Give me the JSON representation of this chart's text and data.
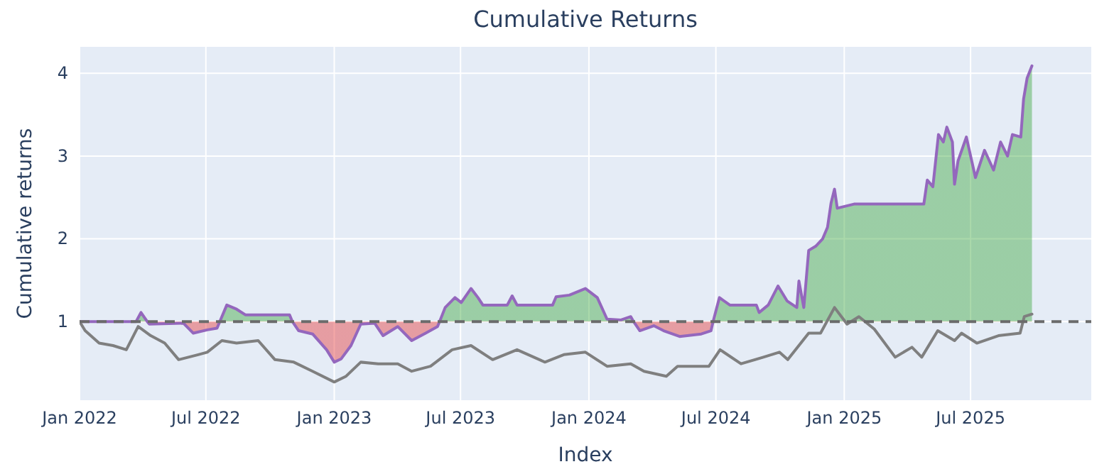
{
  "chart_data": {
    "type": "line",
    "title": "Cumulative Returns",
    "xlabel": "Index",
    "ylabel": "Cumulative returns",
    "xlim": [
      "2022-01-01",
      "2025-12-21"
    ],
    "xticks": [
      {
        "value": "2022-01-01",
        "label": "Jan 2022"
      },
      {
        "value": "2022-07-01",
        "label": "Jul 2022"
      },
      {
        "value": "2023-01-01",
        "label": "Jan 2023"
      },
      {
        "value": "2023-07-01",
        "label": "Jul 2023"
      },
      {
        "value": "2024-01-01",
        "label": "Jan 2024"
      },
      {
        "value": "2024-07-01",
        "label": "Jul 2024"
      },
      {
        "value": "2025-01-01",
        "label": "Jan 2025"
      },
      {
        "value": "2025-07-01",
        "label": "Jul 2025"
      }
    ],
    "ylim": [
      0.05,
      4.32
    ],
    "yticks": [
      1,
      2,
      3,
      4
    ],
    "grid": true,
    "ref_lines": [
      {
        "axis": "y",
        "value": 1,
        "color": "#6b6b6b",
        "line_style": "dashed"
      }
    ],
    "series": [
      {
        "type": "area",
        "color": "#9467bd",
        "x": [
          "2022-01-01",
          "2022-03-23",
          "2022-03-30",
          "2022-04-08",
          "2022-04-11",
          "2022-05-30",
          "2022-06-13",
          "2022-07-03",
          "2022-07-17",
          "2022-07-21",
          "2022-07-31",
          "2022-08-14",
          "2022-08-27",
          "2022-10-29",
          "2022-11-02",
          "2022-11-11",
          "2022-12-01",
          "2022-12-21",
          "2023-01-01",
          "2023-01-11",
          "2023-01-25",
          "2023-02-08",
          "2023-02-28",
          "2023-03-12",
          "2023-04-02",
          "2023-04-22",
          "2023-05-12",
          "2023-05-29",
          "2023-06-01",
          "2023-06-09",
          "2023-06-23",
          "2023-07-02",
          "2023-07-16",
          "2023-07-26",
          "2023-08-02",
          "2023-09-06",
          "2023-09-13",
          "2023-09-20",
          "2023-11-10",
          "2023-11-15",
          "2023-12-04",
          "2023-12-27",
          "2024-01-13",
          "2024-01-27",
          "2024-02-16",
          "2024-03-01",
          "2024-03-05",
          "2024-03-14",
          "2024-04-03",
          "2024-04-17",
          "2024-05-10",
          "2024-06-10",
          "2024-06-24",
          "2024-06-27",
          "2024-07-06",
          "2024-07-21",
          "2024-08-28",
          "2024-09-01",
          "2024-09-14",
          "2024-09-28",
          "2024-10-11",
          "2024-10-25",
          "2024-10-28",
          "2024-11-04",
          "2024-11-11",
          "2024-11-21",
          "2024-12-01",
          "2024-12-08",
          "2024-12-13",
          "2024-12-18",
          "2024-12-22",
          "2025-01-15",
          "2025-04-25",
          "2025-04-30",
          "2025-05-08",
          "2025-05-16",
          "2025-05-23",
          "2025-05-28",
          "2025-06-05",
          "2025-06-08",
          "2025-06-13",
          "2025-06-25",
          "2025-07-08",
          "2025-07-21",
          "2025-08-03",
          "2025-08-13",
          "2025-08-23",
          "2025-08-30",
          "2025-09-11",
          "2025-09-15",
          "2025-09-20",
          "2025-09-27"
        ],
        "values": [
          1.0,
          1.0,
          1.11,
          1.0,
          0.97,
          0.98,
          0.86,
          0.9,
          0.92,
          1.0,
          1.2,
          1.15,
          1.08,
          1.08,
          1.0,
          0.89,
          0.85,
          0.66,
          0.51,
          0.55,
          0.71,
          0.97,
          0.98,
          0.83,
          0.94,
          0.77,
          0.86,
          0.94,
          1.0,
          1.17,
          1.29,
          1.23,
          1.4,
          1.29,
          1.2,
          1.2,
          1.31,
          1.2,
          1.2,
          1.3,
          1.32,
          1.4,
          1.29,
          1.03,
          1.02,
          1.06,
          1.0,
          0.89,
          0.95,
          0.89,
          0.82,
          0.85,
          0.89,
          1.0,
          1.29,
          1.2,
          1.2,
          1.11,
          1.2,
          1.43,
          1.25,
          1.17,
          1.49,
          1.17,
          1.86,
          1.91,
          2.0,
          2.14,
          2.43,
          2.6,
          2.37,
          2.42,
          2.42,
          2.71,
          2.63,
          3.26,
          3.17,
          3.35,
          3.17,
          2.66,
          2.94,
          3.23,
          2.74,
          3.07,
          2.83,
          3.17,
          3.0,
          3.26,
          3.23,
          3.69,
          3.94,
          4.09
        ]
      },
      {
        "type": "line",
        "color": "#7f7f7f",
        "x": [
          "2022-01-01",
          "2022-01-09",
          "2022-01-29",
          "2022-02-18",
          "2022-03-09",
          "2022-03-26",
          "2022-04-13",
          "2022-05-03",
          "2022-05-23",
          "2022-06-20",
          "2022-07-03",
          "2022-07-24",
          "2022-08-14",
          "2022-09-14",
          "2022-10-08",
          "2022-11-04",
          "2022-12-01",
          "2023-01-01",
          "2023-01-18",
          "2023-02-08",
          "2023-03-05",
          "2023-04-02",
          "2023-04-22",
          "2023-05-19",
          "2023-06-19",
          "2023-07-16",
          "2023-08-16",
          "2023-09-20",
          "2023-10-30",
          "2023-11-26",
          "2023-12-27",
          "2024-01-27",
          "2024-03-01",
          "2024-03-20",
          "2024-04-21",
          "2024-05-07",
          "2024-06-21",
          "2024-07-07",
          "2024-08-06",
          "2024-09-07",
          "2024-09-30",
          "2024-10-12",
          "2024-11-11",
          "2024-11-28",
          "2024-12-18",
          "2025-01-05",
          "2025-01-22",
          "2025-02-13",
          "2025-03-15",
          "2025-04-08",
          "2025-04-22",
          "2025-05-15",
          "2025-06-08",
          "2025-06-18",
          "2025-07-10",
          "2025-08-10",
          "2025-09-10",
          "2025-09-16",
          "2025-09-27"
        ],
        "values": [
          1.0,
          0.89,
          0.74,
          0.71,
          0.66,
          0.94,
          0.83,
          0.74,
          0.54,
          0.6,
          0.63,
          0.77,
          0.74,
          0.77,
          0.54,
          0.51,
          0.4,
          0.27,
          0.34,
          0.51,
          0.49,
          0.49,
          0.4,
          0.46,
          0.66,
          0.71,
          0.54,
          0.66,
          0.51,
          0.6,
          0.63,
          0.46,
          0.49,
          0.4,
          0.34,
          0.46,
          0.46,
          0.66,
          0.49,
          0.57,
          0.63,
          0.54,
          0.86,
          0.86,
          1.17,
          0.97,
          1.06,
          0.91,
          0.57,
          0.69,
          0.57,
          0.89,
          0.77,
          0.86,
          0.74,
          0.83,
          0.86,
          1.06,
          1.09
        ]
      }
    ]
  }
}
